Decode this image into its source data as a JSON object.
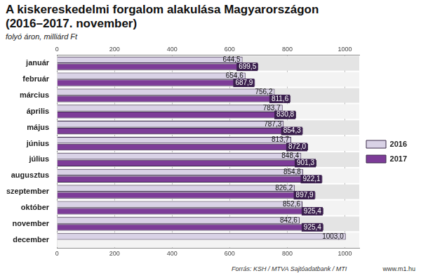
{
  "chart_data": {
    "type": "bar",
    "orientation": "horizontal",
    "title": "A kiskereskedelmi forgalom alakulása Magyarországon (2016–2017. november)",
    "subtitle": "folyó áron, milliárd Ft",
    "source": "Forrás: KSH / MTVA Sajtóadatbank / MTI",
    "website": "www.m1.hu",
    "categories": [
      "január",
      "február",
      "március",
      "április",
      "május",
      "június",
      "július",
      "augusztus",
      "szeptember",
      "október",
      "november",
      "december"
    ],
    "series": [
      {
        "name": "2016",
        "color": "#d9d2e6",
        "values": [
          644.5,
          654.6,
          756.2,
          783.7,
          787.3,
          813.7,
          848.4,
          854.8,
          826.2,
          852.6,
          842.6,
          1003.0
        ],
        "value_labels": [
          "644,5",
          "654,6",
          "756,2",
          "783,7",
          "787,3",
          "813,7",
          "848,4",
          "854,8",
          "826,2",
          "852,6",
          "842,6",
          "1003,0"
        ]
      },
      {
        "name": "2017",
        "color": "#7d3c98",
        "values": [
          699.5,
          687.9,
          811.6,
          830.8,
          854.3,
          872.0,
          901.3,
          922.1,
          897.9,
          925.4,
          925.4,
          null
        ],
        "value_labels": [
          "699,5",
          "687,9",
          "811,6",
          "830,8",
          "854,3",
          "872,0",
          "901,3",
          "922,1",
          "897,9",
          "925,4",
          "925,4",
          null
        ]
      }
    ],
    "xlim": [
      0,
      1050
    ],
    "xticks": [
      0,
      200,
      400,
      600,
      800,
      1000
    ],
    "grid": true,
    "legend": "right",
    "data_labels": true
  }
}
